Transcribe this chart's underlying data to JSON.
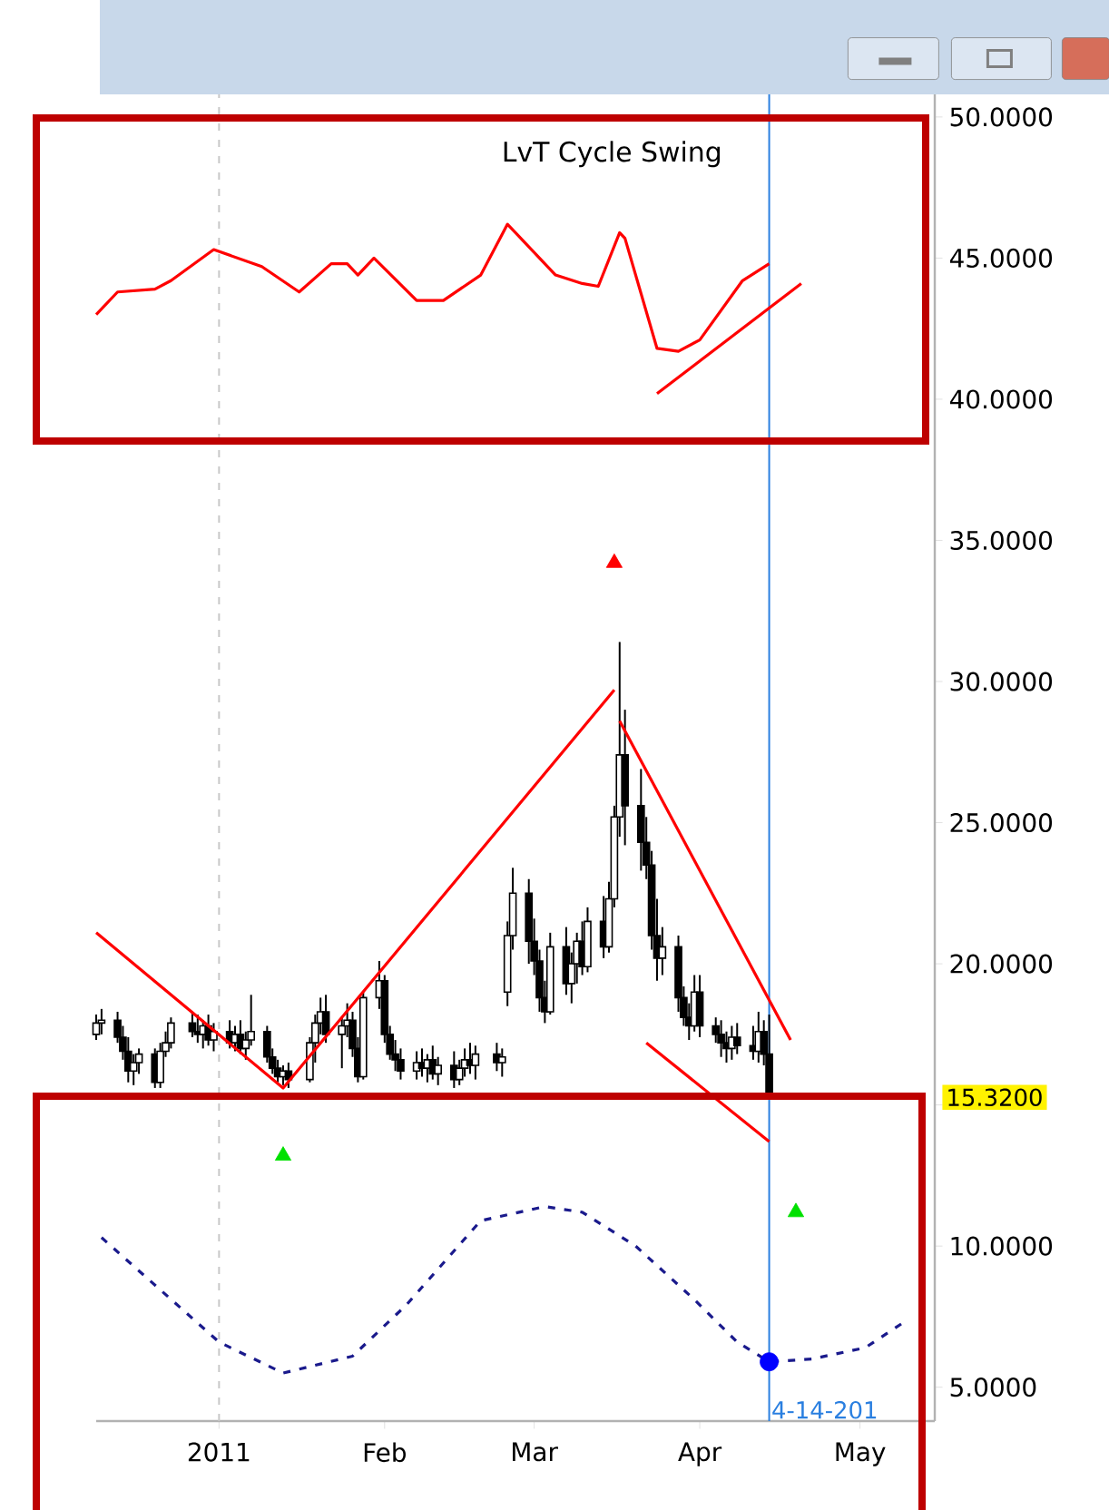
{
  "chart_data": {
    "type": "candlestick",
    "xlim": [
      "2010-12-09",
      "2011-05-15"
    ],
    "xticks": [
      {
        "value": "2011-01-01",
        "label": "2011"
      },
      {
        "value": "2011-02-01",
        "label": "Feb"
      },
      {
        "value": "2011-03-01",
        "label": "Mar"
      },
      {
        "value": "2011-04-01",
        "label": "Apr"
      },
      {
        "value": "2011-05-01",
        "label": "May"
      }
    ],
    "ylim": [
      3.8,
      50.8
    ],
    "yticks": [
      {
        "value": 5,
        "label": "5.0000"
      },
      {
        "value": 10,
        "label": "10.0000"
      },
      {
        "value": 15,
        "label": null
      },
      {
        "value": 20,
        "label": "20.0000"
      },
      {
        "value": 25,
        "label": "25.0000"
      },
      {
        "value": 30,
        "label": "30.0000"
      },
      {
        "value": 35,
        "label": "35.0000"
      },
      {
        "value": 40,
        "label": "40.0000"
      },
      {
        "value": 45,
        "label": "45.0000"
      },
      {
        "value": 50,
        "label": "50.0000"
      }
    ],
    "series": [
      {
        "color": "#000000",
        "x": [
          "2010-12-09",
          "2010-12-10",
          "2010-12-13",
          "2010-12-14",
          "2010-12-15",
          "2010-12-16",
          "2010-12-17",
          "2010-12-20",
          "2010-12-21",
          "2010-12-22",
          "2010-12-23",
          "2010-12-27",
          "2010-12-28",
          "2010-12-29",
          "2010-12-30",
          "2010-12-31",
          "2011-01-03",
          "2011-01-04",
          "2011-01-05",
          "2011-01-06",
          "2011-01-07",
          "2011-01-10",
          "2011-01-11",
          "2011-01-12",
          "2011-01-13",
          "2011-01-14",
          "2011-01-18",
          "2011-01-19",
          "2011-01-20",
          "2011-01-21",
          "2011-01-24",
          "2011-01-25",
          "2011-01-26",
          "2011-01-27",
          "2011-01-28",
          "2011-01-31",
          "2011-02-01",
          "2011-02-02",
          "2011-02-03",
          "2011-02-04",
          "2011-02-07",
          "2011-02-08",
          "2011-02-09",
          "2011-02-10",
          "2011-02-11",
          "2011-02-14",
          "2011-02-15",
          "2011-02-16",
          "2011-02-17",
          "2011-02-18",
          "2011-02-22",
          "2011-02-23",
          "2011-02-24",
          "2011-02-25",
          "2011-02-28",
          "2011-03-01",
          "2011-03-02",
          "2011-03-03",
          "2011-03-04",
          "2011-03-07",
          "2011-03-08",
          "2011-03-09",
          "2011-03-10",
          "2011-03-11",
          "2011-03-14",
          "2011-03-15",
          "2011-03-16",
          "2011-03-17",
          "2011-03-18",
          "2011-03-21",
          "2011-03-22",
          "2011-03-23",
          "2011-03-24",
          "2011-03-25",
          "2011-03-28",
          "2011-03-29",
          "2011-03-30",
          "2011-03-31",
          "2011-04-01",
          "2011-04-04",
          "2011-04-05",
          "2011-04-06",
          "2011-04-07",
          "2011-04-08",
          "2011-04-11",
          "2011-04-12",
          "2011-04-13",
          "2011-04-14"
        ],
        "ohlc": [
          [
            17.5,
            18.2,
            17.3,
            17.9
          ],
          [
            17.9,
            18.4,
            17.5,
            18.0
          ],
          [
            18.0,
            18.3,
            17.2,
            17.4
          ],
          [
            17.4,
            17.8,
            16.6,
            16.9
          ],
          [
            16.9,
            17.4,
            15.8,
            16.2
          ],
          [
            16.2,
            16.8,
            15.7,
            16.5
          ],
          [
            16.5,
            17.0,
            16.1,
            16.8
          ],
          [
            16.8,
            17.0,
            15.6,
            15.8
          ],
          [
            15.8,
            17.2,
            15.6,
            16.9
          ],
          [
            16.9,
            17.6,
            16.7,
            17.2
          ],
          [
            17.2,
            18.1,
            17.0,
            17.9
          ],
          [
            17.9,
            18.3,
            17.4,
            17.6
          ],
          [
            17.6,
            18.2,
            17.2,
            17.5
          ],
          [
            17.5,
            18.0,
            17.0,
            17.8
          ],
          [
            17.8,
            18.2,
            17.1,
            17.3
          ],
          [
            17.3,
            17.9,
            16.9,
            17.6
          ],
          [
            17.6,
            18.0,
            17.0,
            17.2
          ],
          [
            17.2,
            17.8,
            16.9,
            17.5
          ],
          [
            17.5,
            18.0,
            16.8,
            17.0
          ],
          [
            17.0,
            17.6,
            16.6,
            17.3
          ],
          [
            17.3,
            18.9,
            17.1,
            17.6
          ],
          [
            17.6,
            17.8,
            16.5,
            16.7
          ],
          [
            16.7,
            17.0,
            16.1,
            16.3
          ],
          [
            16.3,
            16.6,
            15.8,
            16.0
          ],
          [
            16.0,
            16.4,
            15.7,
            16.2
          ],
          [
            16.2,
            16.5,
            15.6,
            15.9
          ],
          [
            15.9,
            17.4,
            15.8,
            17.2
          ],
          [
            17.2,
            18.2,
            16.5,
            17.9
          ],
          [
            17.9,
            18.8,
            17.5,
            18.3
          ],
          [
            18.3,
            18.9,
            17.2,
            17.5
          ],
          [
            17.5,
            18.1,
            16.3,
            17.8
          ],
          [
            17.8,
            18.6,
            17.4,
            18.0
          ],
          [
            18.0,
            18.3,
            16.7,
            17.0
          ],
          [
            17.0,
            17.4,
            15.8,
            16.0
          ],
          [
            16.0,
            19.0,
            15.9,
            18.8
          ],
          [
            18.8,
            20.1,
            18.4,
            19.4
          ],
          [
            19.4,
            19.6,
            17.2,
            17.5
          ],
          [
            17.5,
            17.8,
            16.6,
            16.8
          ],
          [
            16.8,
            17.3,
            16.2,
            16.6
          ],
          [
            16.6,
            17.0,
            15.9,
            16.2
          ],
          [
            16.2,
            16.9,
            15.9,
            16.5
          ],
          [
            16.5,
            17.0,
            16.0,
            16.3
          ],
          [
            16.3,
            16.8,
            15.8,
            16.6
          ],
          [
            16.6,
            17.1,
            15.9,
            16.1
          ],
          [
            16.1,
            16.7,
            15.7,
            16.4
          ],
          [
            16.4,
            16.9,
            15.6,
            15.9
          ],
          [
            15.9,
            16.6,
            15.7,
            16.3
          ],
          [
            16.3,
            17.0,
            16.0,
            16.6
          ],
          [
            16.6,
            17.2,
            16.1,
            16.4
          ],
          [
            16.4,
            17.1,
            15.9,
            16.8
          ],
          [
            16.8,
            17.2,
            16.2,
            16.5
          ],
          [
            16.5,
            17.0,
            16.0,
            16.7
          ],
          [
            19.0,
            21.5,
            18.5,
            21.0
          ],
          [
            21.0,
            23.4,
            20.5,
            22.5
          ],
          [
            22.5,
            23.0,
            20.0,
            20.8
          ],
          [
            20.8,
            21.6,
            19.6,
            20.1
          ],
          [
            20.1,
            20.5,
            18.3,
            18.8
          ],
          [
            18.8,
            19.4,
            17.9,
            18.3
          ],
          [
            18.3,
            21.1,
            18.2,
            20.6
          ],
          [
            20.6,
            21.3,
            18.9,
            19.3
          ],
          [
            19.3,
            20.4,
            18.6,
            20.0
          ],
          [
            20.0,
            21.1,
            19.3,
            20.8
          ],
          [
            20.8,
            21.5,
            19.6,
            19.9
          ],
          [
            19.9,
            22.0,
            19.7,
            21.5
          ],
          [
            21.5,
            22.4,
            20.2,
            20.6
          ],
          [
            20.6,
            22.9,
            20.4,
            22.3
          ],
          [
            22.3,
            25.6,
            22.0,
            25.2
          ],
          [
            25.2,
            31.4,
            24.5,
            27.4
          ],
          [
            27.4,
            29.0,
            24.2,
            25.6
          ],
          [
            25.6,
            26.9,
            23.3,
            24.3
          ],
          [
            24.3,
            25.2,
            23.0,
            23.5
          ],
          [
            23.5,
            24.0,
            20.5,
            21.0
          ],
          [
            21.0,
            22.3,
            19.4,
            20.2
          ],
          [
            20.2,
            21.3,
            19.6,
            20.6
          ],
          [
            20.6,
            21.0,
            18.3,
            18.8
          ],
          [
            18.8,
            19.2,
            17.8,
            18.1
          ],
          [
            18.1,
            18.6,
            17.3,
            17.8
          ],
          [
            17.8,
            19.6,
            17.6,
            19.0
          ],
          [
            19.0,
            19.6,
            17.4,
            17.8
          ],
          [
            17.8,
            18.1,
            17.2,
            17.5
          ],
          [
            17.5,
            18.0,
            16.7,
            17.2
          ],
          [
            17.2,
            17.6,
            16.5,
            17.0
          ],
          [
            17.0,
            17.8,
            16.6,
            17.4
          ],
          [
            17.4,
            17.9,
            16.8,
            17.1
          ],
          [
            17.1,
            17.8,
            16.6,
            16.9
          ],
          [
            16.9,
            18.3,
            16.5,
            17.6
          ],
          [
            17.6,
            18.0,
            16.4,
            16.8
          ],
          [
            16.8,
            18.2,
            15.3,
            15.32
          ]
        ]
      },
      {
        "type": "line",
        "color": "#ff0000",
        "line_style": "solid",
        "x": [
          "2010-12-09",
          "2010-12-13",
          "2010-12-20",
          "2010-12-23",
          "2010-12-31",
          "2011-01-09",
          "2011-01-16",
          "2011-01-22",
          "2011-01-25",
          "2011-01-27",
          "2011-01-30",
          "2011-02-07",
          "2011-02-12",
          "2011-02-19",
          "2011-02-24",
          "2011-02-27",
          "2011-03-05",
          "2011-03-10",
          "2011-03-13",
          "2011-03-17",
          "2011-03-18",
          "2011-03-24",
          "2011-03-28",
          "2011-04-01",
          "2011-04-09",
          "2011-04-14"
        ],
        "values": [
          43.0,
          43.8,
          43.9,
          44.2,
          45.3,
          44.7,
          43.8,
          44.8,
          44.8,
          44.4,
          45.0,
          43.5,
          43.5,
          44.4,
          46.2,
          45.6,
          44.4,
          44.1,
          44.0,
          45.9,
          45.7,
          41.8,
          41.7,
          42.1,
          44.2,
          44.8
        ]
      },
      {
        "type": "line",
        "color": "#ff0000",
        "line_style": "solid",
        "x": [
          "2011-03-24",
          "2011-04-20"
        ],
        "values": [
          40.2,
          44.1
        ]
      },
      {
        "type": "line",
        "color": "#ff0000",
        "line_style": "solid",
        "x": [
          "2010-12-09",
          "2011-01-13",
          "2011-03-16"
        ],
        "values": [
          21.1,
          15.6,
          29.7
        ]
      },
      {
        "type": "line",
        "color": "#ff0000",
        "line_style": "solid",
        "x": [
          "2011-03-17",
          "2011-04-18"
        ],
        "values": [
          28.6,
          17.3
        ]
      },
      {
        "type": "line",
        "color": "#ff0000",
        "line_style": "solid",
        "x": [
          "2011-03-22",
          "2011-04-14"
        ],
        "values": [
          17.2,
          13.7
        ]
      },
      {
        "type": "line",
        "color": "#1a1a8c",
        "line_style": "dashed",
        "x": [
          "2010-12-10",
          "2011-01-01",
          "2011-01-13",
          "2011-01-26",
          "2011-02-05",
          "2011-02-19",
          "2011-03-03",
          "2011-03-10",
          "2011-03-20",
          "2011-03-31",
          "2011-04-08",
          "2011-04-14",
          "2011-04-22",
          "2011-05-02",
          "2011-05-10"
        ],
        "values": [
          10.3,
          6.6,
          5.5,
          6.1,
          7.9,
          10.9,
          11.4,
          11.2,
          10.0,
          8.1,
          6.6,
          5.9,
          6.0,
          6.4,
          7.4
        ]
      },
      {
        "type": "scatter",
        "color": "#0000ff",
        "marker": "circle",
        "x": [
          "2011-04-14"
        ],
        "values": [
          5.9
        ]
      },
      {
        "type": "scatter",
        "color": "#ff0000",
        "marker": "triangle",
        "x": [
          "2011-03-16"
        ],
        "values": [
          34.2
        ]
      },
      {
        "type": "scatter",
        "color": "#00e000",
        "marker": "triangle",
        "x": [
          "2011-01-13",
          "2011-04-19"
        ],
        "values": [
          13.2,
          11.2
        ]
      }
    ],
    "ref_lines": [
      {
        "axis": "x",
        "value": "2011-01-01",
        "color": "#c8c8c8",
        "line_style": "dashed"
      },
      {
        "axis": "x",
        "value": "2011-04-14",
        "label": "4-14-201",
        "color": "#2a7fe0",
        "line_style": "solid"
      }
    ],
    "annotations": [
      "LvT Cycle Swing",
      "15.3200"
    ]
  }
}
